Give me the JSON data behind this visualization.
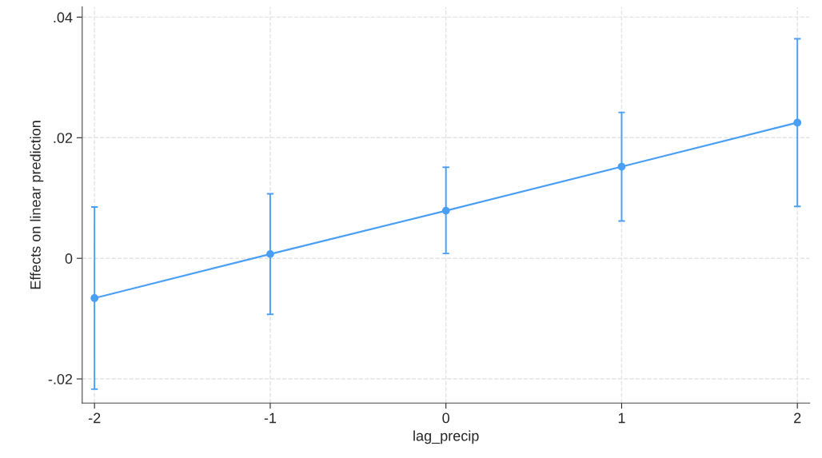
{
  "chart_data": {
    "type": "line",
    "xlabel": "lag_precip",
    "ylabel": "Effects on linear prediction",
    "x": [
      -2,
      -1,
      0,
      1,
      2
    ],
    "series": [
      {
        "color": "#4a9ff5",
        "values": [
          -0.0066,
          0.0007,
          0.0079,
          0.0152,
          0.0225
        ],
        "errors": [
          [
            -0.0217,
            0.0085
          ],
          [
            -0.0093,
            0.0107
          ],
          [
            0.0008,
            0.0151
          ],
          [
            0.0062,
            0.0242
          ],
          [
            0.0086,
            0.0364
          ]
        ]
      }
    ],
    "xlim": [
      -2.07,
      2.07
    ],
    "xticks": [
      -2,
      -1,
      0,
      1,
      2
    ],
    "ylim": [
      -0.024,
      0.0417
    ],
    "yticks": [
      {
        "value": -0.02,
        "label": "-.02"
      },
      {
        "value": 0,
        "label": "0"
      },
      {
        "value": 0.02,
        "label": ".02"
      },
      {
        "value": 0.04,
        "label": ".04"
      }
    ],
    "grid": true,
    "marker": "circle",
    "line_style": "solid",
    "legend": false
  }
}
